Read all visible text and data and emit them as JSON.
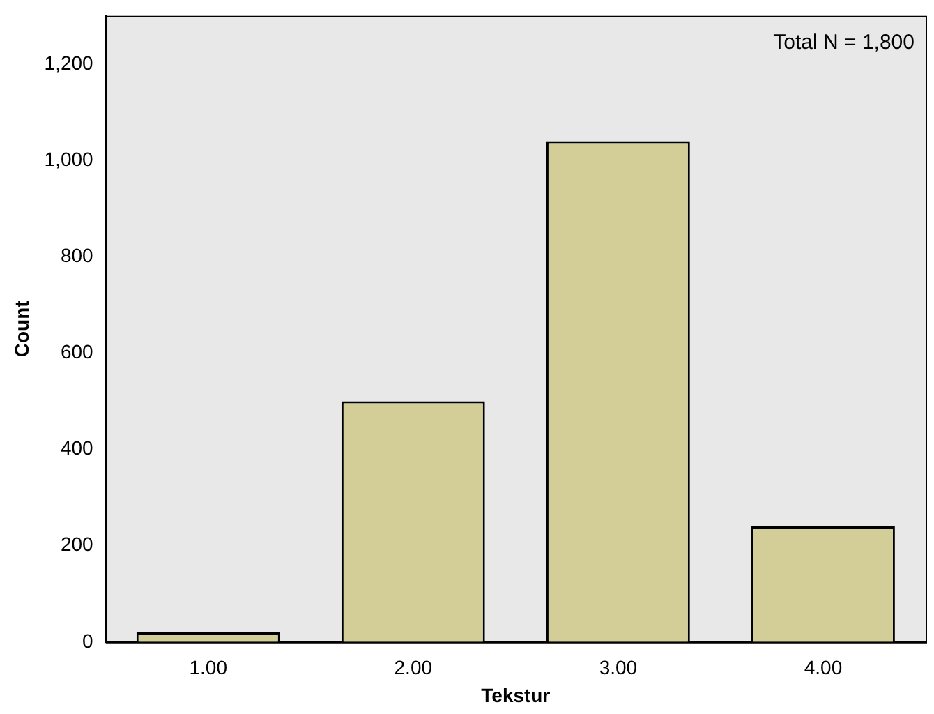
{
  "chart_data": {
    "type": "bar",
    "xlabel": "Tekstur",
    "ylabel": "Count",
    "categories": [
      "1.00",
      "2.00",
      "3.00",
      "4.00"
    ],
    "values": [
      20,
      500,
      1040,
      240
    ],
    "color": "#d3ce97",
    "ylim": [
      0,
      1300
    ],
    "yticks": [
      0,
      {
        "value": 200,
        "label": "200"
      },
      {
        "value": 400,
        "label": "400"
      },
      {
        "value": 600,
        "label": "600"
      },
      {
        "value": 800,
        "label": "800"
      },
      {
        "value": 1000,
        "label": "1,000"
      },
      {
        "value": 1200,
        "label": "1,200"
      }
    ],
    "grid": false,
    "legend": false,
    "annotations": [
      "Total N = 1,800"
    ]
  }
}
